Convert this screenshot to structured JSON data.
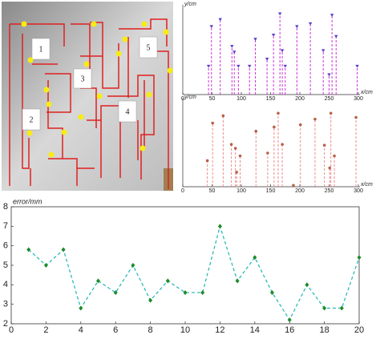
{
  "photo": {
    "labels": [
      "1",
      "2",
      "3",
      "4",
      "5"
    ]
  },
  "chart_data": [
    {
      "type": "stem",
      "y_label": "y/cm",
      "x_label": "x/cm",
      "color": "#d030e0",
      "marker": "triangle",
      "marker_color": "#5a3cc8",
      "x": [
        44,
        49,
        64,
        84,
        88,
        95,
        114,
        124,
        144,
        155,
        166,
        170,
        175,
        195,
        218,
        240,
        250,
        255,
        262,
        298
      ],
      "values": [
        100,
        240,
        265,
        170,
        150,
        100,
        100,
        195,
        125,
        210,
        285,
        155,
        100,
        240,
        250,
        155,
        70,
        280,
        205,
        100
      ],
      "xlim": [
        0,
        300
      ],
      "ylim": [
        0,
        300
      ],
      "xticks": [
        0,
        50,
        100,
        150,
        200,
        250,
        300
      ]
    },
    {
      "type": "stem",
      "y_label": "y/cm",
      "x_label": "x/cm",
      "color": "#f08a8a",
      "marker": "circle",
      "marker_color": "#b86048",
      "x": [
        42,
        51,
        69,
        83,
        90,
        92,
        98,
        125,
        145,
        156,
        163,
        170,
        189,
        201,
        226,
        242,
        251,
        253,
        259,
        296
      ],
      "values": [
        93,
        227,
        253,
        151,
        137,
        52,
        110,
        198,
        120,
        213,
        262,
        151,
        5,
        221,
        241,
        148,
        67,
        262,
        110,
        247
      ],
      "xlim": [
        0,
        300
      ],
      "ylim": [
        0,
        300
      ],
      "xticks": [
        0,
        50,
        100,
        150,
        200,
        250,
        300
      ]
    },
    {
      "type": "line",
      "y_label": "error/mm",
      "color": "#20b4b4",
      "marker_color": "#1f8a2a",
      "x": [
        1,
        2,
        3,
        4,
        5,
        6,
        7,
        8,
        9,
        10,
        11,
        12,
        13,
        14,
        15,
        16,
        17,
        18,
        19,
        20
      ],
      "values": [
        5.8,
        5.0,
        5.8,
        2.8,
        4.2,
        3.6,
        5.0,
        3.2,
        4.2,
        3.6,
        3.6,
        7.0,
        4.2,
        5.4,
        3.6,
        2.2,
        4.0,
        2.8,
        2.8,
        5.4
      ],
      "xlim": [
        0,
        20
      ],
      "ylim": [
        2,
        8
      ],
      "xticks": [
        0,
        2,
        4,
        6,
        8,
        10,
        12,
        14,
        16,
        18,
        20
      ],
      "yticks": [
        2,
        3,
        4,
        5,
        6,
        7,
        8
      ]
    }
  ]
}
